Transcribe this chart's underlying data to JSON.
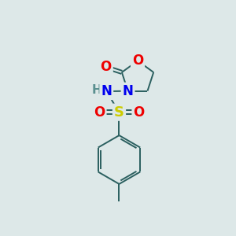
{
  "background_color": "#dde8e8",
  "atom_colors": {
    "C": "#2a5f5f",
    "N": "#0000ee",
    "O": "#ee0000",
    "S": "#cccc00",
    "H": "#5a9090"
  },
  "bond_color": "#2a5f5f",
  "figsize": [
    3.0,
    3.0
  ],
  "dpi": 100
}
